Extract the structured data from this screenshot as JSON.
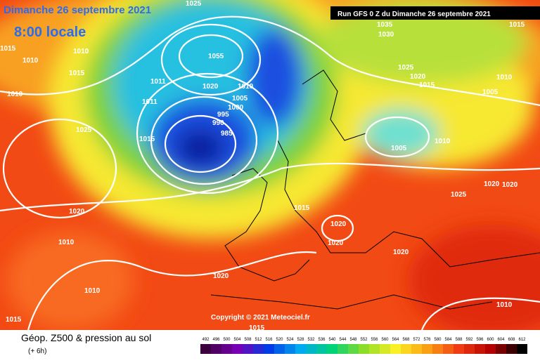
{
  "header": {
    "title": "Dimanche 26 septembre 2021",
    "time": "8:00 locale",
    "run": "Run GFS 0 Z du Dimanche 26 septembre 2021"
  },
  "map": {
    "copyright": "Copyright © 2021 Meteociel.fr",
    "isobar_labels": [
      "1025",
      "1015",
      "1010",
      "1010",
      "1015",
      "1010",
      "1025",
      "1015",
      "1020",
      "1010",
      "1010",
      "1015",
      "1020",
      "1015",
      "1015",
      "1020",
      "1020",
      "1020",
      "1005",
      "1010",
      "1025",
      "1020",
      "1020",
      "1010",
      "1005",
      "1010",
      "1015",
      "1020",
      "1025",
      "1030",
      "1035",
      "1015",
      "1055",
      "1020",
      "1010",
      "1005",
      "1000",
      "995",
      "990",
      "985",
      "1011",
      "1011"
    ]
  },
  "footer": {
    "title": "Géop. Z500 & pression au sol",
    "subtitle": "(+ 6h)",
    "scale": [
      "492",
      "496",
      "500",
      "504",
      "508",
      "512",
      "516",
      "520",
      "524",
      "528",
      "532",
      "536",
      "540",
      "544",
      "548",
      "552",
      "556",
      "560",
      "564",
      "568",
      "572",
      "576",
      "580",
      "584",
      "588",
      "592",
      "596",
      "600",
      "604",
      "608",
      "612"
    ]
  }
}
